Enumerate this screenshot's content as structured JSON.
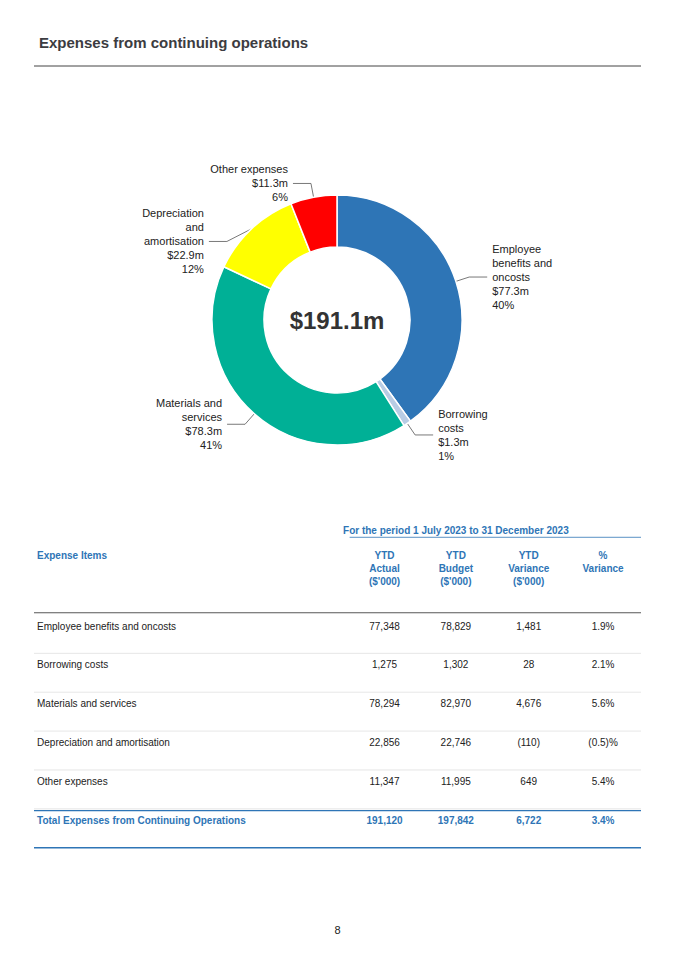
{
  "chart_data": {
    "type": "pie",
    "title": "Expenses from continuing operations",
    "center_text": "$191.1m",
    "categories": [
      "Employee\nbenefits and\noncosts\n$77.3m\n40%",
      "Borrowing\ncosts\n$1.3m\n1%",
      "Materials and\nservices\n$78.3m\n41%",
      "Depreciation\nand\namortisation\n$22.9m\n12%",
      "Other expenses\n$11.3m\n6%"
    ],
    "values": [
      40,
      1,
      41,
      12,
      6
    ],
    "colors": [
      "#2E75B6",
      "#B8CCE4",
      "#00B096",
      "#FFFF00",
      "#FF0000"
    ],
    "table": {
      "title": "For the period 1 July 2023 to 31 December 2023",
      "columns": [
        "Expense Items",
        "YTD\nActual\n($'000)",
        "YTD\nBudget\n($'000)",
        "YTD\nVariance\n($'000)",
        "%\nVariance"
      ],
      "rows": [
        [
          "Employee benefits and oncosts",
          "77,348",
          "78,829",
          "1,481",
          "1.9%"
        ],
        [
          "Borrowing costs",
          "1,275",
          "1,302",
          "28",
          "2.1%"
        ],
        [
          "Materials and services",
          "78,294",
          "82,970",
          "4,676",
          "5.6%"
        ],
        [
          "Depreciation and amortisation",
          "22,856",
          "22,746",
          "(110)",
          "(0.5)%"
        ],
        [
          "Other expenses",
          "11,347",
          "11,995",
          "649",
          "5.4%"
        ],
        [
          "Total Expenses from Continuing Operations",
          "191,120",
          "197,842",
          "6,722",
          "3.4%"
        ]
      ]
    },
    "page_number": "8"
  }
}
